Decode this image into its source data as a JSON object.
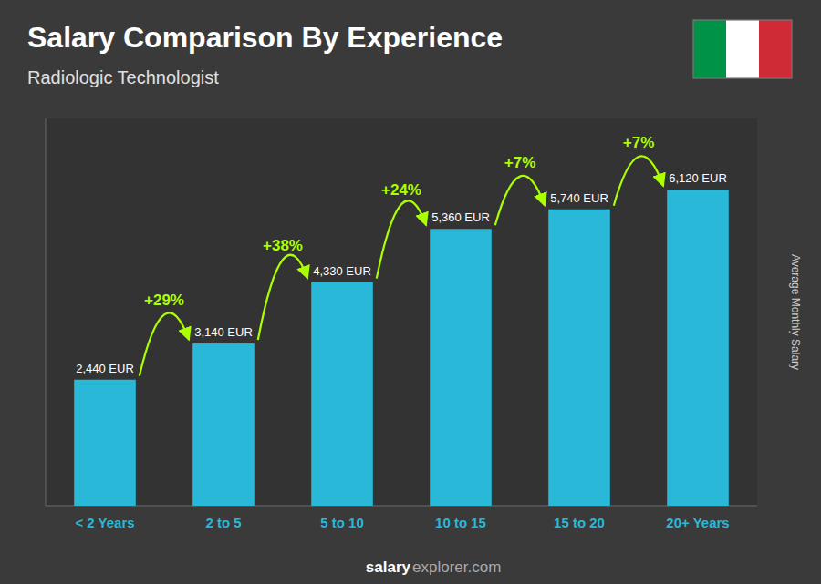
{
  "chart_data": {
    "type": "bar",
    "title": "Salary Comparison By Experience",
    "subtitle": "Radiologic Technologist",
    "y_label": "Average Monthly Salary",
    "categories": [
      "< 2 Years",
      "2 to 5",
      "5 to 10",
      "10 to 15",
      "15 to 20",
      "20+ Years"
    ],
    "values": [
      2440,
      3140,
      4330,
      5360,
      5740,
      6120
    ],
    "value_labels": [
      "2,440 EUR",
      "3,140 EUR",
      "4,330 EUR",
      "5,360 EUR",
      "5,740 EUR",
      "6,120 EUR"
    ],
    "data_labels": true,
    "color": "#29b8d8",
    "ylim": [
      0,
      7500
    ],
    "tick_labels": "x",
    "grid": false,
    "annotations": [
      "+29%",
      "+38%",
      "+24%",
      "+7%",
      "+7%"
    ],
    "footer": [
      "salary",
      "explorer.com"
    ]
  }
}
